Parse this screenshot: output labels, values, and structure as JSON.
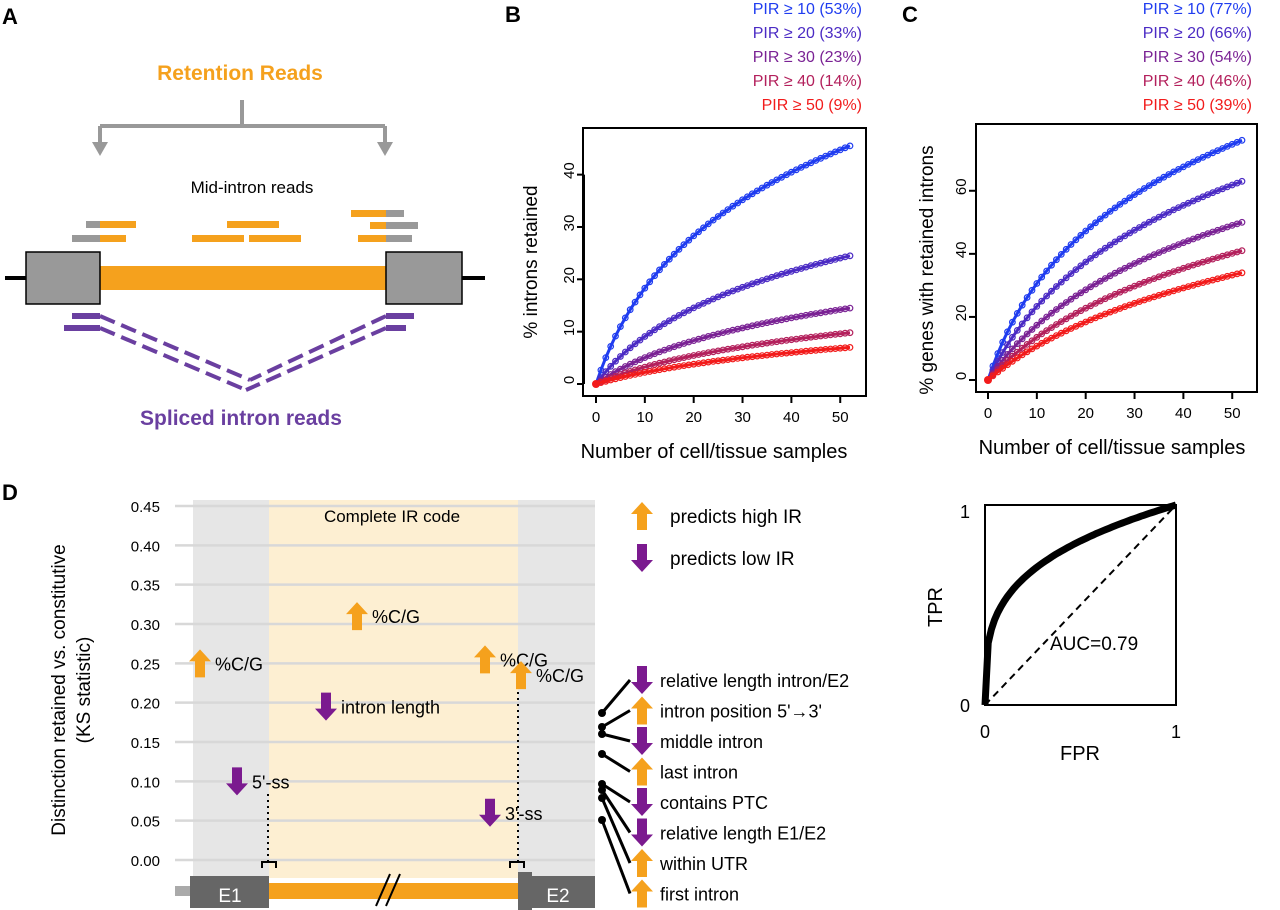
{
  "panel_labels": {
    "a": "A",
    "b": "B",
    "c": "C",
    "d": "D"
  },
  "panel_a": {
    "retention_label": "Retention Reads",
    "mid_intron_label": "Mid-intron reads",
    "spliced_label": "Spliced intron reads",
    "colors": {
      "orange": "#f5a11d",
      "purple": "#6a3fa0",
      "gray": "#999999"
    }
  },
  "chart_data": [
    {
      "id": "B",
      "type": "line",
      "xlabel": "Number of cell/tissue samples",
      "ylabel": "% introns retained",
      "xlim": [
        0,
        52
      ],
      "ylim": [
        0,
        47
      ],
      "xticks": [
        0,
        10,
        20,
        30,
        40,
        50
      ],
      "yticks": [
        0,
        10,
        20,
        30,
        40
      ],
      "grid": false,
      "legend_position": "top",
      "series": [
        {
          "name": "PIR ≥ 10 (53%)",
          "color": "#1f3cf0",
          "final": 45.5
        },
        {
          "name": "PIR ≥ 20 (33%)",
          "color": "#4b2bc4",
          "final": 24.5
        },
        {
          "name": "PIR ≥ 30 (23%)",
          "color": "#7a2294",
          "final": 14.5
        },
        {
          "name": "PIR ≥ 40 (14%)",
          "color": "#b3205c",
          "final": 9.8
        },
        {
          "name": "PIR ≥ 50 (9%)",
          "color": "#f21b1b",
          "final": 7.0
        }
      ]
    },
    {
      "id": "C",
      "type": "line",
      "xlabel": "Number of cell/tissue samples",
      "ylabel": "% genes with retained introns",
      "xlim": [
        0,
        52
      ],
      "ylim": [
        0,
        78
      ],
      "xticks": [
        0,
        10,
        20,
        30,
        40,
        50
      ],
      "yticks": [
        0,
        20,
        40,
        60
      ],
      "grid": false,
      "legend_position": "top",
      "series": [
        {
          "name": "PIR ≥ 10 (77%)",
          "color": "#1f3cf0",
          "final": 76
        },
        {
          "name": "PIR ≥ 20 (66%)",
          "color": "#4b2bc4",
          "final": 63
        },
        {
          "name": "PIR ≥ 30 (54%)",
          "color": "#7a2294",
          "final": 50
        },
        {
          "name": "PIR ≥ 40 (46%)",
          "color": "#b3205c",
          "final": 41
        },
        {
          "name": "PIR ≥ 50 (39%)",
          "color": "#f21b1b",
          "final": 34
        }
      ]
    },
    {
      "id": "D",
      "type": "scatter",
      "ylabel": "Distinction retained vs. constitutive (KS statistic)",
      "ylabel_lines": [
        "Distinction retained vs. constitutive",
        "(KS statistic)"
      ],
      "ylim": [
        0,
        0.45
      ],
      "yticks": [
        "0.00",
        "0.05",
        "0.10",
        "0.15",
        "0.20",
        "0.25",
        "0.30",
        "0.35",
        "0.40",
        "0.45"
      ],
      "region_label": "Complete IR code",
      "exon_labels": [
        "E1",
        "E2"
      ],
      "features": [
        {
          "label": "%C/G",
          "y": 0.25,
          "dir": "up",
          "region": "E1"
        },
        {
          "label": "%C/G",
          "y": 0.31,
          "dir": "up",
          "region": "intron"
        },
        {
          "label": "%C/G",
          "y": 0.255,
          "dir": "up",
          "region": "intron-3'"
        },
        {
          "label": "%C/G",
          "y": 0.235,
          "dir": "up",
          "region": "3'-ss"
        },
        {
          "label": "intron length",
          "y": 0.195,
          "dir": "down",
          "region": "intron"
        },
        {
          "label": "5'-ss",
          "y": 0.1,
          "dir": "down",
          "region": "5'-ss"
        },
        {
          "label": "3'-ss",
          "y": 0.06,
          "dir": "down",
          "region": "3'-ss"
        }
      ],
      "legend": [
        {
          "label": "predicts high IR",
          "dir": "up"
        },
        {
          "label": "predicts low IR",
          "dir": "down"
        }
      ],
      "side_features": [
        {
          "label": "relative length intron/E2",
          "dir": "down"
        },
        {
          "label": "intron position 5'→3'",
          "dir": "up"
        },
        {
          "label": "middle intron",
          "dir": "down"
        },
        {
          "label": "last intron",
          "dir": "up"
        },
        {
          "label": "contains PTC",
          "dir": "down"
        },
        {
          "label": "relative length E1/E2",
          "dir": "down"
        },
        {
          "label": "within UTR",
          "dir": "up"
        },
        {
          "label": "first intron",
          "dir": "up"
        }
      ],
      "colors": {
        "up": "#f5a11d",
        "down": "#7b1a8f",
        "region": "#fdefd2",
        "flank": "#e6e6e6"
      }
    },
    {
      "id": "ROC",
      "type": "line",
      "xlabel": "FPR",
      "ylabel": "TPR",
      "xlim": [
        0,
        1
      ],
      "ylim": [
        0,
        1
      ],
      "xticks": [
        "0",
        "1"
      ],
      "yticks": [
        "0",
        "1"
      ],
      "annotation": "AUC=0.79",
      "auc": 0.79
    }
  ]
}
